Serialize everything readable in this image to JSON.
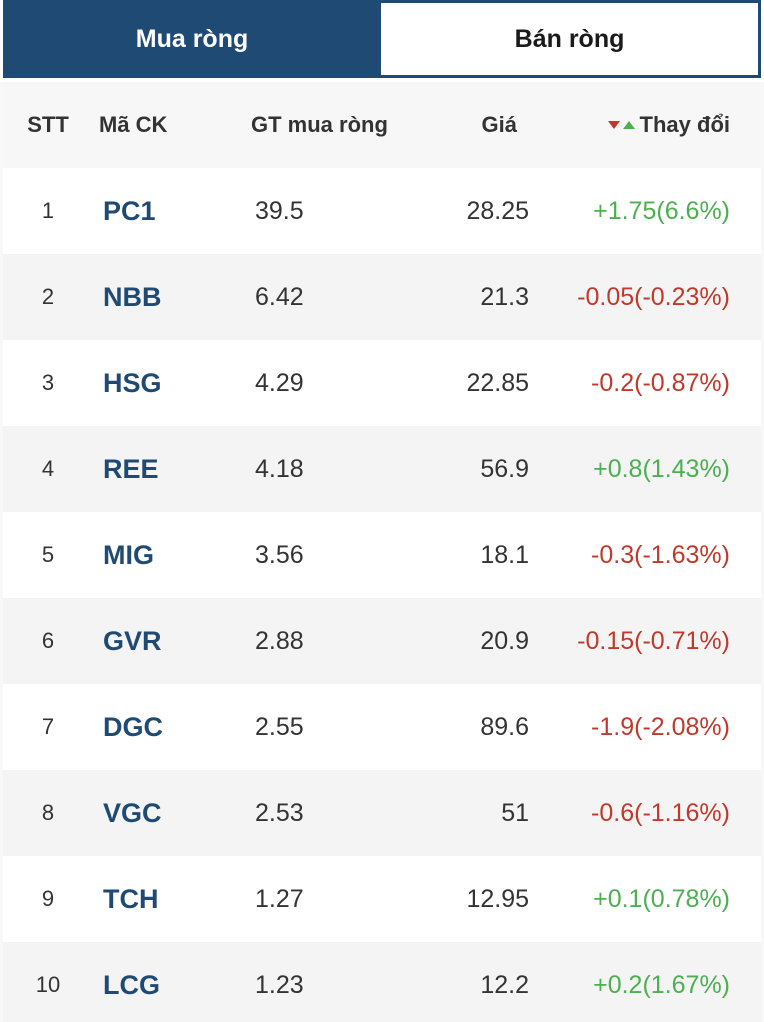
{
  "tabs": {
    "buy_label": "Mua ròng",
    "sell_label": "Bán ròng",
    "active": "Mua ròng"
  },
  "table": {
    "columns": {
      "stt": "STT",
      "symbol": "Mã CK",
      "value": "GT mua ròng",
      "price": "Giá",
      "change": "Thay đổi"
    },
    "rows": [
      {
        "stt": "1",
        "symbol": "PC1",
        "value": "39.5",
        "price": "28.25",
        "change": "+1.75(6.6%)",
        "direction": "up"
      },
      {
        "stt": "2",
        "symbol": "NBB",
        "value": "6.42",
        "price": "21.3",
        "change": "-0.05(-0.23%)",
        "direction": "down"
      },
      {
        "stt": "3",
        "symbol": "HSG",
        "value": "4.29",
        "price": "22.85",
        "change": "-0.2(-0.87%)",
        "direction": "down"
      },
      {
        "stt": "4",
        "symbol": "REE",
        "value": "4.18",
        "price": "56.9",
        "change": "+0.8(1.43%)",
        "direction": "up"
      },
      {
        "stt": "5",
        "symbol": "MIG",
        "value": "3.56",
        "price": "18.1",
        "change": "-0.3(-1.63%)",
        "direction": "down"
      },
      {
        "stt": "6",
        "symbol": "GVR",
        "value": "2.88",
        "price": "20.9",
        "change": "-0.15(-0.71%)",
        "direction": "down"
      },
      {
        "stt": "7",
        "symbol": "DGC",
        "value": "2.55",
        "price": "89.6",
        "change": "-1.9(-2.08%)",
        "direction": "down"
      },
      {
        "stt": "8",
        "symbol": "VGC",
        "value": "2.53",
        "price": "51",
        "change": "-0.6(-1.16%)",
        "direction": "down"
      },
      {
        "stt": "9",
        "symbol": "TCH",
        "value": "1.27",
        "price": "12.95",
        "change": "+0.1(0.78%)",
        "direction": "up"
      },
      {
        "stt": "10",
        "symbol": "LCG",
        "value": "1.23",
        "price": "12.2",
        "change": "+0.2(1.67%)",
        "direction": "up"
      }
    ]
  },
  "colors": {
    "brand": "#1f4a73",
    "up": "#4caf50",
    "down": "#c0392b"
  },
  "icons": {
    "sort": [
      "sort-down-icon",
      "sort-up-icon"
    ]
  }
}
